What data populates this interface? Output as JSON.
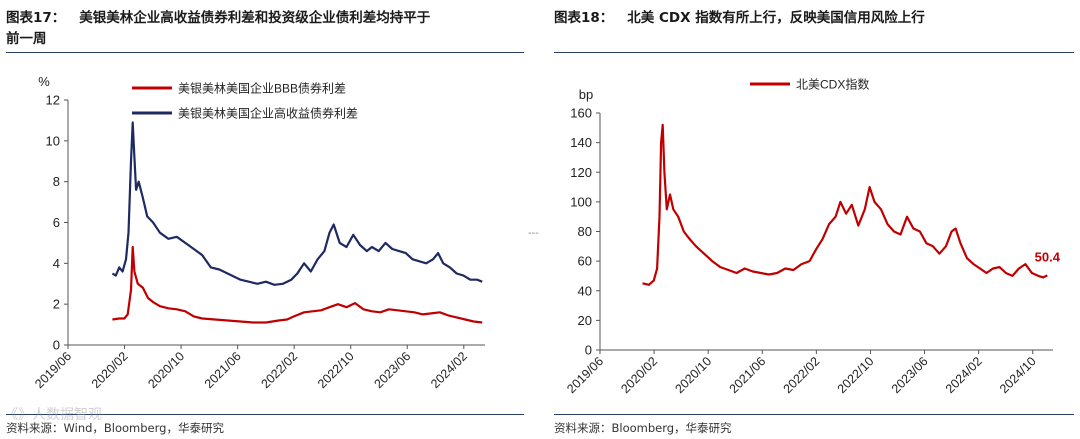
{
  "left": {
    "fig_num": "图表17：",
    "title_line1": "美银美林企业高收益债券利差和投资级企业债利差均持平于",
    "title_line2": "前一周",
    "source": "资料来源：Wind，Bloomberg，华泰研究",
    "colors": {
      "bbb": "#c00000",
      "hy": "#1f2a63"
    }
  },
  "right": {
    "fig_num": "图表18：",
    "title": "北美 CDX 指数有所上行，反映美国信用风险上行",
    "source": "资料来源：Bloomberg，华泰研究",
    "colors": {
      "cdx": "#c00000"
    }
  },
  "watermark": "《》人数据智观",
  "dash_mark": "---",
  "chart_data": [
    {
      "type": "line",
      "ylabel": "%",
      "ylim": [
        0,
        12
      ],
      "yticks": [
        0,
        2,
        4,
        6,
        8,
        10,
        12
      ],
      "xlim": [
        2019.4167,
        2024.3333
      ],
      "xticks": [
        {
          "label": "2019/06",
          "t": 2019.4167
        },
        {
          "label": "2020/02",
          "t": 2020.0833
        },
        {
          "label": "2020/10",
          "t": 2020.75
        },
        {
          "label": "2021/06",
          "t": 2021.4167
        },
        {
          "label": "2022/02",
          "t": 2022.0833
        },
        {
          "label": "2022/10",
          "t": 2022.75
        },
        {
          "label": "2023/06",
          "t": 2023.4167
        },
        {
          "label": "2024/02",
          "t": 2024.0833
        }
      ],
      "legend_position": "top",
      "series": [
        {
          "name": "美银美林美国企业BBB债券利差",
          "color": "#c00000",
          "points": [
            [
              2019.94,
              1.25
            ],
            [
              2020.02,
              1.3
            ],
            [
              2020.08,
              1.3
            ],
            [
              2020.12,
              1.5
            ],
            [
              2020.16,
              2.7
            ],
            [
              2020.18,
              4.8
            ],
            [
              2020.2,
              3.6
            ],
            [
              2020.24,
              3.0
            ],
            [
              2020.3,
              2.8
            ],
            [
              2020.36,
              2.3
            ],
            [
              2020.42,
              2.1
            ],
            [
              2020.5,
              1.9
            ],
            [
              2020.6,
              1.8
            ],
            [
              2020.7,
              1.75
            ],
            [
              2020.8,
              1.65
            ],
            [
              2020.9,
              1.4
            ],
            [
              2021.0,
              1.3
            ],
            [
              2021.15,
              1.25
            ],
            [
              2021.3,
              1.2
            ],
            [
              2021.45,
              1.15
            ],
            [
              2021.6,
              1.1
            ],
            [
              2021.75,
              1.1
            ],
            [
              2021.9,
              1.2
            ],
            [
              2022.0,
              1.25
            ],
            [
              2022.08,
              1.4
            ],
            [
              2022.2,
              1.6
            ],
            [
              2022.3,
              1.65
            ],
            [
              2022.4,
              1.7
            ],
            [
              2022.5,
              1.85
            ],
            [
              2022.6,
              2.0
            ],
            [
              2022.7,
              1.85
            ],
            [
              2022.8,
              2.05
            ],
            [
              2022.9,
              1.75
            ],
            [
              2023.0,
              1.65
            ],
            [
              2023.1,
              1.6
            ],
            [
              2023.2,
              1.75
            ],
            [
              2023.3,
              1.7
            ],
            [
              2023.4,
              1.65
            ],
            [
              2023.5,
              1.6
            ],
            [
              2023.6,
              1.5
            ],
            [
              2023.7,
              1.55
            ],
            [
              2023.8,
              1.6
            ],
            [
              2023.9,
              1.45
            ],
            [
              2024.0,
              1.35
            ],
            [
              2024.1,
              1.25
            ],
            [
              2024.2,
              1.15
            ],
            [
              2024.3,
              1.1
            ]
          ]
        },
        {
          "name": "美银美林美国企业高收益债券利差",
          "color": "#1f2a63",
          "points": [
            [
              2019.94,
              3.5
            ],
            [
              2019.98,
              3.4
            ],
            [
              2020.02,
              3.8
            ],
            [
              2020.06,
              3.6
            ],
            [
              2020.1,
              4.2
            ],
            [
              2020.13,
              5.5
            ],
            [
              2020.16,
              9.0
            ],
            [
              2020.18,
              10.9
            ],
            [
              2020.2,
              9.2
            ],
            [
              2020.22,
              7.6
            ],
            [
              2020.25,
              8.0
            ],
            [
              2020.3,
              7.2
            ],
            [
              2020.35,
              6.3
            ],
            [
              2020.42,
              6.0
            ],
            [
              2020.5,
              5.5
            ],
            [
              2020.6,
              5.2
            ],
            [
              2020.7,
              5.3
            ],
            [
              2020.8,
              5.0
            ],
            [
              2020.9,
              4.7
            ],
            [
              2021.0,
              4.4
            ],
            [
              2021.1,
              3.8
            ],
            [
              2021.2,
              3.7
            ],
            [
              2021.35,
              3.4
            ],
            [
              2021.45,
              3.2
            ],
            [
              2021.55,
              3.1
            ],
            [
              2021.65,
              3.0
            ],
            [
              2021.75,
              3.1
            ],
            [
              2021.85,
              2.95
            ],
            [
              2021.95,
              3.0
            ],
            [
              2022.05,
              3.2
            ],
            [
              2022.12,
              3.5
            ],
            [
              2022.2,
              4.0
            ],
            [
              2022.28,
              3.6
            ],
            [
              2022.36,
              4.2
            ],
            [
              2022.44,
              4.6
            ],
            [
              2022.5,
              5.5
            ],
            [
              2022.55,
              5.9
            ],
            [
              2022.62,
              5.0
            ],
            [
              2022.7,
              4.8
            ],
            [
              2022.78,
              5.4
            ],
            [
              2022.86,
              4.9
            ],
            [
              2022.94,
              4.6
            ],
            [
              2023.0,
              4.8
            ],
            [
              2023.08,
              4.6
            ],
            [
              2023.16,
              5.0
            ],
            [
              2023.24,
              4.7
            ],
            [
              2023.32,
              4.6
            ],
            [
              2023.4,
              4.5
            ],
            [
              2023.48,
              4.2
            ],
            [
              2023.56,
              4.1
            ],
            [
              2023.64,
              4.0
            ],
            [
              2023.72,
              4.2
            ],
            [
              2023.78,
              4.5
            ],
            [
              2023.84,
              4.0
            ],
            [
              2023.92,
              3.8
            ],
            [
              2024.0,
              3.5
            ],
            [
              2024.08,
              3.4
            ],
            [
              2024.16,
              3.2
            ],
            [
              2024.24,
              3.2
            ],
            [
              2024.3,
              3.1
            ]
          ]
        }
      ]
    },
    {
      "type": "line",
      "ylabel": "bp",
      "ylim": [
        0,
        160
      ],
      "yticks": [
        0,
        20,
        40,
        60,
        80,
        100,
        120,
        140,
        160
      ],
      "xlim": [
        2019.4167,
        2025.0
      ],
      "xticks": [
        {
          "label": "2019/06",
          "t": 2019.4167
        },
        {
          "label": "2020/02",
          "t": 2020.0833
        },
        {
          "label": "2020/10",
          "t": 2020.75
        },
        {
          "label": "2021/06",
          "t": 2021.4167
        },
        {
          "label": "2022/02",
          "t": 2022.0833
        },
        {
          "label": "2022/10",
          "t": 2022.75
        },
        {
          "label": "2023/06",
          "t": 2023.4167
        },
        {
          "label": "2024/02",
          "t": 2024.0833
        },
        {
          "label": "2024/10",
          "t": 2024.75
        }
      ],
      "legend_position": "top",
      "annotations": [
        {
          "text": "50.4",
          "t": 2024.93,
          "v": 50.4
        }
      ],
      "series": [
        {
          "name": "北美CDX指数",
          "color": "#c00000",
          "points": [
            [
              2019.94,
              45
            ],
            [
              2020.02,
              44
            ],
            [
              2020.08,
              47
            ],
            [
              2020.12,
              55
            ],
            [
              2020.15,
              90
            ],
            [
              2020.17,
              140
            ],
            [
              2020.19,
              152
            ],
            [
              2020.21,
              120
            ],
            [
              2020.24,
              95
            ],
            [
              2020.28,
              105
            ],
            [
              2020.32,
              95
            ],
            [
              2020.38,
              90
            ],
            [
              2020.45,
              80
            ],
            [
              2020.52,
              75
            ],
            [
              2020.6,
              70
            ],
            [
              2020.7,
              65
            ],
            [
              2020.8,
              60
            ],
            [
              2020.9,
              56
            ],
            [
              2021.0,
              54
            ],
            [
              2021.1,
              52
            ],
            [
              2021.2,
              55
            ],
            [
              2021.3,
              53
            ],
            [
              2021.4,
              52
            ],
            [
              2021.5,
              51
            ],
            [
              2021.6,
              52
            ],
            [
              2021.7,
              55
            ],
            [
              2021.8,
              54
            ],
            [
              2021.9,
              58
            ],
            [
              2022.0,
              60
            ],
            [
              2022.08,
              68
            ],
            [
              2022.16,
              75
            ],
            [
              2022.24,
              85
            ],
            [
              2022.32,
              90
            ],
            [
              2022.38,
              100
            ],
            [
              2022.45,
              92
            ],
            [
              2022.52,
              98
            ],
            [
              2022.6,
              84
            ],
            [
              2022.68,
              95
            ],
            [
              2022.74,
              110
            ],
            [
              2022.8,
              100
            ],
            [
              2022.88,
              95
            ],
            [
              2022.96,
              85
            ],
            [
              2023.04,
              80
            ],
            [
              2023.12,
              78
            ],
            [
              2023.2,
              90
            ],
            [
              2023.28,
              82
            ],
            [
              2023.36,
              80
            ],
            [
              2023.44,
              72
            ],
            [
              2023.52,
              70
            ],
            [
              2023.6,
              65
            ],
            [
              2023.68,
              70
            ],
            [
              2023.75,
              80
            ],
            [
              2023.8,
              82
            ],
            [
              2023.86,
              72
            ],
            [
              2023.94,
              62
            ],
            [
              2024.02,
              58
            ],
            [
              2024.1,
              55
            ],
            [
              2024.18,
              52
            ],
            [
              2024.26,
              55
            ],
            [
              2024.34,
              56
            ],
            [
              2024.42,
              52
            ],
            [
              2024.5,
              50
            ],
            [
              2024.58,
              55
            ],
            [
              2024.66,
              58
            ],
            [
              2024.74,
              52
            ],
            [
              2024.82,
              50
            ],
            [
              2024.88,
              49
            ],
            [
              2024.93,
              50.4
            ]
          ]
        }
      ]
    }
  ]
}
